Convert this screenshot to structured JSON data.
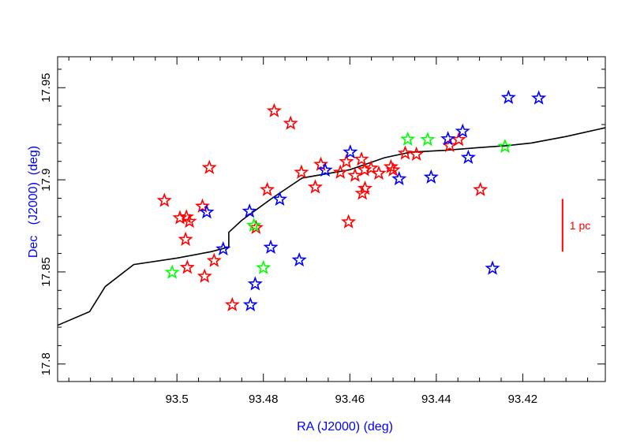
{
  "chart_data": {
    "type": "scatter",
    "xlabel": "RA (J2000) (deg)",
    "ylabel": "Dec   (J2000)  (deg)",
    "xlim": [
      93.5276,
      93.4009
    ],
    "ylim": [
      17.7905,
      17.9668
    ],
    "x_reversed": true,
    "grid": false,
    "x_ticks": [
      93.5,
      93.48,
      93.46,
      93.44,
      93.42
    ],
    "x_tick_labels": [
      "93.5",
      "93.48",
      "93.46",
      "93.44",
      "93.42"
    ],
    "y_ticks": [
      17.8,
      17.85,
      17.9,
      17.95
    ],
    "y_tick_labels": [
      "17.8",
      "17.85",
      "17.9",
      "17.95"
    ],
    "x_minor_step": 0.005,
    "y_minor_step": 0.01,
    "colors": {
      "axis": "#000000",
      "label": "#0000ff",
      "red": "#ff0000",
      "blue": "#0000ff",
      "green": "#00ff00",
      "scalebar": "#ff0000"
    },
    "series": [
      {
        "color": "red",
        "points": [
          [
            93.5029,
            17.8887
          ],
          [
            93.4993,
            17.8793
          ],
          [
            93.4978,
            17.8798
          ],
          [
            93.4971,
            17.8774
          ],
          [
            93.4941,
            17.8856
          ],
          [
            93.498,
            17.8676
          ],
          [
            93.4976,
            17.8524
          ],
          [
            93.4925,
            17.9066
          ],
          [
            93.4936,
            17.8476
          ],
          [
            93.4914,
            17.8561
          ],
          [
            93.4872,
            17.8321
          ],
          [
            93.4817,
            17.874
          ],
          [
            93.4791,
            17.8946
          ],
          [
            93.4775,
            17.9374
          ],
          [
            93.4737,
            17.9306
          ],
          [
            93.4712,
            17.904
          ],
          [
            93.468,
            17.896
          ],
          [
            93.4667,
            17.9083
          ],
          [
            93.4622,
            17.904
          ],
          [
            93.4608,
            17.9098
          ],
          [
            93.4603,
            17.8771
          ],
          [
            93.4588,
            17.9023
          ],
          [
            93.4573,
            17.9111
          ],
          [
            93.4571,
            17.8926
          ],
          [
            93.4566,
            17.9054
          ],
          [
            93.4565,
            17.8953
          ],
          [
            93.4551,
            17.9063
          ],
          [
            93.4533,
            17.9035
          ],
          [
            93.4505,
            17.907
          ],
          [
            93.45,
            17.9053
          ],
          [
            93.4472,
            17.9144
          ],
          [
            93.4446,
            17.9138
          ],
          [
            93.4369,
            17.9185
          ],
          [
            93.4348,
            17.9218
          ],
          [
            93.4298,
            17.8946
          ]
        ]
      },
      {
        "color": "blue",
        "points": [
          [
            93.4931,
            17.8824
          ],
          [
            93.4893,
            17.8624
          ],
          [
            93.4832,
            17.8829
          ],
          [
            93.483,
            17.8321
          ],
          [
            93.4819,
            17.8434
          ],
          [
            93.4783,
            17.8633
          ],
          [
            93.4762,
            17.8894
          ],
          [
            93.4717,
            17.8564
          ],
          [
            93.4657,
            17.9052
          ],
          [
            93.4599,
            17.915
          ],
          [
            93.4486,
            17.9005
          ],
          [
            93.4412,
            17.9014
          ],
          [
            93.4373,
            17.9222
          ],
          [
            93.4339,
            17.9263
          ],
          [
            93.4326,
            17.9121
          ],
          [
            93.427,
            17.8519
          ],
          [
            93.4233,
            17.9446
          ],
          [
            93.4163,
            17.9443
          ]
        ]
      },
      {
        "color": "green",
        "points": [
          [
            93.5011,
            17.8497
          ],
          [
            93.4822,
            17.8752
          ],
          [
            93.48,
            17.8522
          ],
          [
            93.4466,
            17.922
          ],
          [
            93.442,
            17.9218
          ],
          [
            93.4241,
            17.918
          ]
        ]
      }
    ],
    "boundary_line": [
      [
        93.5276,
        17.821
      ],
      [
        93.5202,
        17.8284
      ],
      [
        93.5166,
        17.842
      ],
      [
        93.51,
        17.854
      ],
      [
        93.5,
        17.8575
      ],
      [
        93.492,
        17.861
      ],
      [
        93.488,
        17.8635
      ],
      [
        93.488,
        17.8715
      ],
      [
        93.485,
        17.878
      ],
      [
        93.478,
        17.89
      ],
      [
        93.471,
        17.901
      ],
      [
        93.46,
        17.9055
      ],
      [
        93.452,
        17.912
      ],
      [
        93.446,
        17.915
      ],
      [
        93.438,
        17.916
      ],
      [
        93.43,
        17.9175
      ],
      [
        93.424,
        17.9185
      ],
      [
        93.418,
        17.92
      ],
      [
        93.41,
        17.9235
      ],
      [
        93.4009,
        17.9283
      ]
    ],
    "scale_bar": {
      "label": "1 pc",
      "x": 93.4108,
      "y_from": 17.861,
      "y_to": 17.8896
    }
  }
}
